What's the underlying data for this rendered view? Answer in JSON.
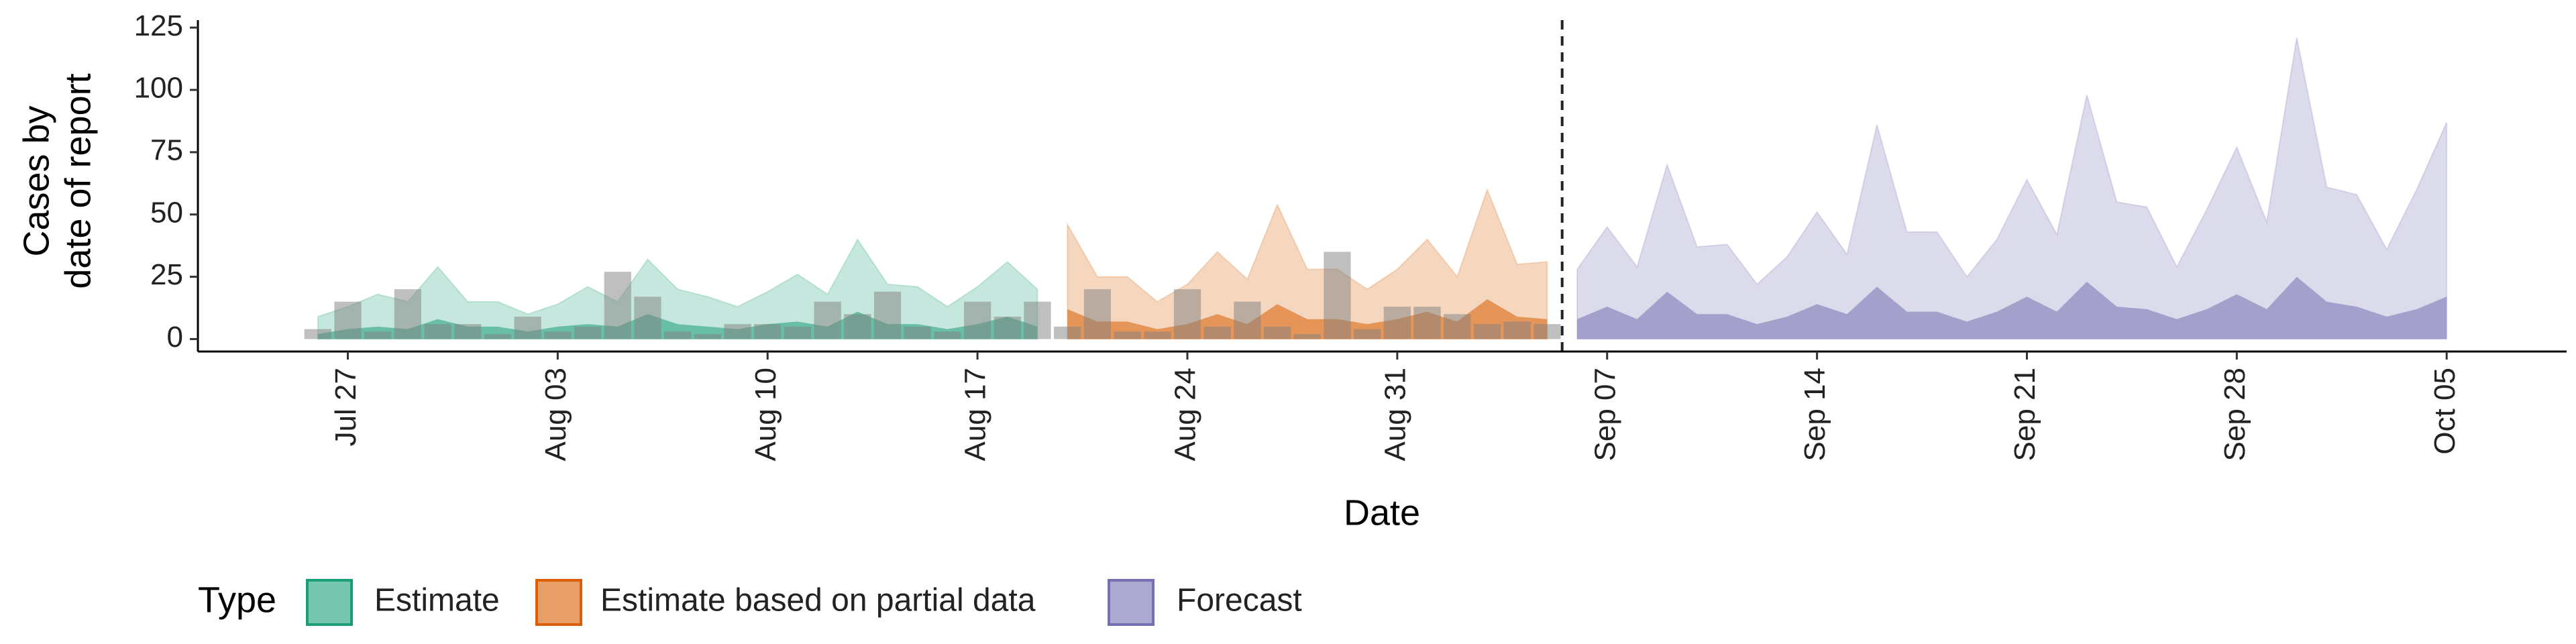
{
  "chart_data": {
    "type": "area",
    "xlabel": "Date",
    "ylabel": [
      "Cases by",
      "date of report"
    ],
    "xlim": [
      "Jul 22",
      "Oct 09"
    ],
    "ylim": [
      -5,
      128
    ],
    "yticks": [
      0,
      25,
      50,
      75,
      100,
      125
    ],
    "xticks": [
      "Jul 27",
      "Aug 03",
      "Aug 10",
      "Aug 17",
      "Aug 24",
      "Aug 31",
      "Sep 07",
      "Sep 14",
      "Sep 21",
      "Sep 28",
      "Oct 05"
    ],
    "vline": "Sep 05",
    "legend_title": "Type",
    "legend_position": "bottom",
    "series": [
      {
        "name": "Estimate",
        "color": "#1b9e77",
        "x": [
          "Jul 26",
          "Jul 27",
          "Jul 28",
          "Jul 29",
          "Jul 30",
          "Jul 31",
          "Aug 01",
          "Aug 02",
          "Aug 03",
          "Aug 04",
          "Aug 05",
          "Aug 06",
          "Aug 07",
          "Aug 08",
          "Aug 09",
          "Aug 10",
          "Aug 11",
          "Aug 12",
          "Aug 13",
          "Aug 14",
          "Aug 15",
          "Aug 16",
          "Aug 17",
          "Aug 18",
          "Aug 19"
        ],
        "values": [
          9,
          13,
          18,
          15,
          29,
          15,
          15,
          10,
          14,
          21,
          15,
          32,
          20,
          17,
          13,
          19,
          26,
          18,
          40,
          22,
          21,
          13,
          21,
          31,
          20
        ],
        "inner": [
          2,
          4,
          5,
          4,
          8,
          5,
          5,
          3,
          5,
          6,
          5,
          10,
          6,
          5,
          4,
          6,
          7,
          5,
          11,
          6,
          6,
          4,
          6,
          9,
          5
        ]
      },
      {
        "name": "Estimate based on partial data",
        "color": "#d95f02",
        "x": [
          "Aug 20",
          "Aug 21",
          "Aug 22",
          "Aug 23",
          "Aug 24",
          "Aug 25",
          "Aug 26",
          "Aug 27",
          "Aug 28",
          "Aug 29",
          "Aug 30",
          "Aug 31",
          "Sep 01",
          "Sep 02",
          "Sep 03",
          "Sep 04",
          "Sep 05"
        ],
        "values": [
          46,
          25,
          25,
          15,
          22,
          35,
          24,
          54,
          28,
          28,
          20,
          28,
          40,
          25,
          60,
          30,
          31
        ],
        "inner": [
          12,
          7,
          7,
          4,
          6,
          10,
          6,
          14,
          8,
          8,
          6,
          8,
          11,
          7,
          16,
          9,
          8
        ]
      },
      {
        "name": "Forecast",
        "color": "#7570b3",
        "x": [
          "Sep 06",
          "Sep 07",
          "Sep 08",
          "Sep 09",
          "Sep 10",
          "Sep 11",
          "Sep 12",
          "Sep 13",
          "Sep 14",
          "Sep 15",
          "Sep 16",
          "Sep 17",
          "Sep 18",
          "Sep 19",
          "Sep 20",
          "Sep 21",
          "Sep 22",
          "Sep 23",
          "Sep 24",
          "Sep 25",
          "Sep 26",
          "Sep 27",
          "Sep 28",
          "Sep 29",
          "Sep 30",
          "Oct 01",
          "Oct 02",
          "Oct 03",
          "Oct 04",
          "Oct 05"
        ],
        "values": [
          28,
          45,
          29,
          70,
          37,
          38,
          22,
          33,
          51,
          34,
          86,
          43,
          43,
          25,
          40,
          64,
          42,
          98,
          55,
          53,
          29,
          52,
          77,
          47,
          121,
          61,
          58,
          36,
          60,
          87
        ],
        "inner": [
          8,
          13,
          8,
          19,
          10,
          10,
          6,
          9,
          14,
          10,
          21,
          11,
          11,
          7,
          11,
          17,
          11,
          23,
          13,
          12,
          8,
          12,
          18,
          12,
          25,
          15,
          13,
          9,
          12,
          17
        ]
      }
    ],
    "bars": {
      "color": "#808080",
      "x": [
        "Jul 26",
        "Jul 27",
        "Jul 28",
        "Jul 29",
        "Jul 30",
        "Jul 31",
        "Aug 01",
        "Aug 02",
        "Aug 03",
        "Aug 04",
        "Aug 05",
        "Aug 06",
        "Aug 07",
        "Aug 08",
        "Aug 09",
        "Aug 10",
        "Aug 11",
        "Aug 12",
        "Aug 13",
        "Aug 14",
        "Aug 15",
        "Aug 16",
        "Aug 17",
        "Aug 18",
        "Aug 19",
        "Aug 20",
        "Aug 21",
        "Aug 22",
        "Aug 23",
        "Aug 24",
        "Aug 25",
        "Aug 26",
        "Aug 27",
        "Aug 28",
        "Aug 29",
        "Aug 30",
        "Aug 31",
        "Sep 01",
        "Sep 02",
        "Sep 03",
        "Sep 04",
        "Sep 05"
      ],
      "values": [
        4,
        15,
        3,
        20,
        6,
        6,
        2,
        9,
        3,
        5,
        27,
        17,
        3,
        2,
        6,
        6,
        5,
        15,
        10,
        19,
        5,
        3,
        15,
        9,
        15,
        5,
        20,
        3,
        3,
        20,
        5,
        15,
        5,
        2,
        35,
        4,
        13,
        13,
        10,
        6,
        7,
        6
      ]
    }
  }
}
